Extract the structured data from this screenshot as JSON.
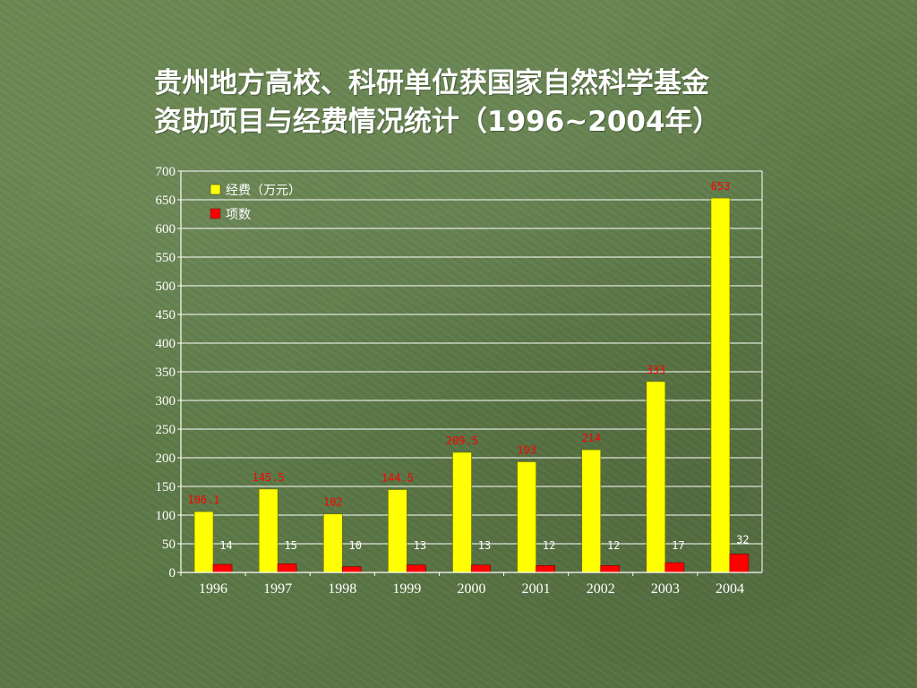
{
  "slide": {
    "title_line1": "贵州地方高校、科研单位获国家自然科学基金",
    "title_line2": "资助项目与经费情况统计（1996~2004年）"
  },
  "colors": {
    "funding_bar": "#ffff00",
    "count_bar": "#ff0000",
    "funding_label": "#ff0000",
    "count_label": "#ffffff",
    "grid": "#ffffff"
  },
  "chart_data": {
    "type": "bar",
    "title": "",
    "xlabel": "",
    "ylabel": "",
    "categories": [
      "1996",
      "1997",
      "1998",
      "1999",
      "2000",
      "2001",
      "2002",
      "2003",
      "2004"
    ],
    "ylim": [
      0,
      700
    ],
    "yticks": [
      0,
      50,
      100,
      150,
      200,
      250,
      300,
      350,
      400,
      450,
      500,
      550,
      600,
      650,
      700
    ],
    "grid": true,
    "legend_position": "top-left",
    "series": [
      {
        "name": "经费（万元）",
        "color": "#ffff00",
        "values": [
          106.1,
          145.5,
          102,
          144.5,
          209.5,
          193,
          214,
          333,
          653
        ],
        "labels": [
          "106.1",
          "145.5",
          "102",
          "144.5",
          "209.5",
          "193",
          "214",
          "333",
          "653"
        ]
      },
      {
        "name": "项数",
        "color": "#ff0000",
        "values": [
          14,
          15,
          10,
          13,
          13,
          12,
          12,
          17,
          32
        ],
        "labels": [
          "14",
          "15",
          "10",
          "13",
          "13",
          "12",
          "12",
          "17",
          "32"
        ]
      }
    ]
  }
}
